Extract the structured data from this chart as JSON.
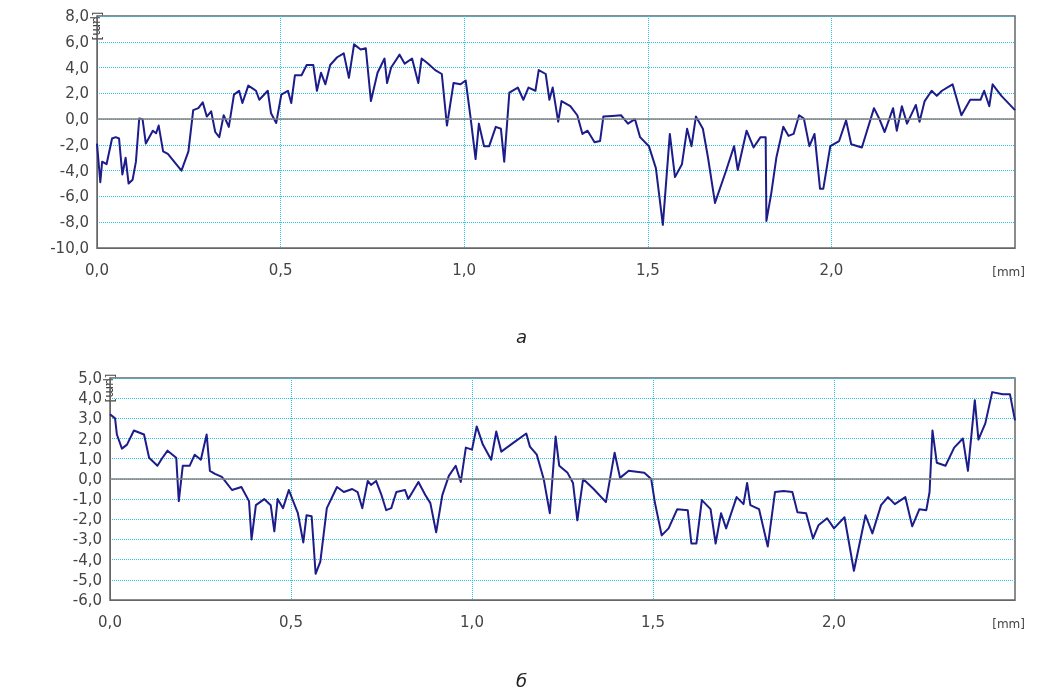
{
  "chart_data": [
    {
      "type": "line",
      "title": "а",
      "xlabel": "[mm]",
      "ylabel": "[µm]",
      "grid": true,
      "line_style": "solid",
      "xlim": [
        0,
        2.5
      ],
      "xticks": [
        {
          "value": 0,
          "label": "0,0"
        },
        {
          "value": 0.5,
          "label": "0,5"
        },
        {
          "value": 1,
          "label": "1,0"
        },
        {
          "value": 1.5,
          "label": "1,5"
        },
        {
          "value": 2,
          "label": "2,0"
        }
      ],
      "ylim": [
        -10,
        8
      ],
      "yticks": [
        {
          "value": -10,
          "label": "-10,0"
        },
        {
          "value": -8,
          "label": "-8,0"
        },
        {
          "value": -6,
          "label": "-6,0"
        },
        {
          "value": -4,
          "label": "-4,0"
        },
        {
          "value": -2,
          "label": "-2,0"
        },
        {
          "value": 0,
          "label": "0,0"
        },
        {
          "value": 2,
          "label": "2,0"
        },
        {
          "value": 4,
          "label": "4,0"
        },
        {
          "value": 6,
          "label": "6,0"
        },
        {
          "value": 8,
          "label": "8,0"
        }
      ],
      "ref_lines": [
        {
          "axis": "y",
          "value": 0,
          "label": null,
          "color": "#808080"
        }
      ],
      "series": [
        {
          "color": "#1c1c8a",
          "x": [
            0,
            0.009,
            0.014,
            0.026,
            0.041,
            0.051,
            0.06,
            0.069,
            0.078,
            0.086,
            0.097,
            0.106,
            0.115,
            0.124,
            0.133,
            0.152,
            0.161,
            0.168,
            0.18,
            0.193,
            0.23,
            0.249,
            0.262,
            0.276,
            0.288,
            0.299,
            0.311,
            0.322,
            0.333,
            0.345,
            0.359,
            0.373,
            0.387,
            0.396,
            0.412,
            0.433,
            0.442,
            0.465,
            0.474,
            0.488,
            0.502,
            0.52,
            0.529,
            0.539,
            0.557,
            0.571,
            0.589,
            0.599,
            0.61,
            0.622,
            0.635,
            0.654,
            0.672,
            0.686,
            0.7,
            0.718,
            0.732,
            0.746,
            0.764,
            0.783,
            0.79,
            0.801,
            0.824,
            0.838,
            0.858,
            0.875,
            0.884,
            0.902,
            0.921,
            0.939,
            0.953,
            0.971,
            0.99,
            1.004,
            1.017,
            1.031,
            1.04,
            1.054,
            1.068,
            1.086,
            1.1,
            1.109,
            1.123,
            1.146,
            1.161,
            1.175,
            1.194,
            1.203,
            1.222,
            1.232,
            1.241,
            1.256,
            1.265,
            1.289,
            1.308,
            1.322,
            1.336,
            1.355,
            1.37,
            1.379,
            1.403,
            1.427,
            1.446,
            1.465,
            1.479,
            1.503,
            1.522,
            1.541,
            1.56,
            1.574,
            1.593,
            1.607,
            1.619,
            1.631,
            1.65,
            1.664,
            1.683,
            1.712,
            1.735,
            1.745,
            1.769,
            1.788,
            1.807,
            1.821,
            1.823,
            1.836,
            1.85,
            1.869,
            1.883,
            1.897,
            1.912,
            1.925,
            1.94,
            1.954,
            1.969,
            1.978,
            1.997,
            2.021,
            2.04,
            2.054,
            2.083,
            2.116,
            2.13,
            2.145,
            2.168,
            2.178,
            2.192,
            2.206,
            2.23,
            2.24,
            2.254,
            2.273,
            2.287,
            2.301,
            2.33,
            2.354,
            2.378,
            2.406,
            2.416,
            2.43,
            2.439,
            2.463,
            2.5
          ],
          "values": [
            -1.9,
            -4.9,
            -3.3,
            -3.5,
            -1.5,
            -1.4,
            -1.5,
            -4.3,
            -3.0,
            -5.0,
            -4.7,
            -3.3,
            0.05,
            0.0,
            -1.9,
            -0.9,
            -1.1,
            -0.5,
            -2.5,
            -2.7,
            -4.0,
            -2.5,
            0.7,
            0.85,
            1.3,
            0.2,
            0.6,
            -1.0,
            -1.4,
            0.3,
            -0.6,
            1.9,
            2.2,
            1.25,
            2.6,
            2.2,
            1.5,
            2.2,
            0.45,
            -0.3,
            1.9,
            2.2,
            1.25,
            3.4,
            3.4,
            4.2,
            4.2,
            2.2,
            3.6,
            2.7,
            4.2,
            4.8,
            5.1,
            3.2,
            5.8,
            5.4,
            5.5,
            1.4,
            3.6,
            4.7,
            2.8,
            4.0,
            5.0,
            4.3,
            4.7,
            2.8,
            4.7,
            4.3,
            3.8,
            3.5,
            -0.5,
            2.8,
            2.7,
            3.0,
            0.2,
            -3.1,
            -0.35,
            -2.1,
            -2.1,
            -0.6,
            -0.75,
            -3.3,
            2.05,
            2.45,
            1.5,
            2.45,
            2.2,
            3.8,
            3.5,
            1.5,
            2.45,
            -0.2,
            1.4,
            1.0,
            0.3,
            -1.15,
            -0.9,
            -1.8,
            -1.7,
            0.2,
            0.25,
            0.3,
            -0.35,
            0.0,
            -1.4,
            -2.1,
            -3.8,
            -8.2,
            -1.15,
            -4.5,
            -3.5,
            -0.75,
            -2.1,
            0.2,
            -0.75,
            -3.0,
            -6.5,
            -4.1,
            -2.1,
            -3.95,
            -0.9,
            -2.2,
            -1.4,
            -1.4,
            -7.9,
            -5.8,
            -3.0,
            -0.6,
            -1.3,
            -1.15,
            0.3,
            0.05,
            -2.1,
            -1.15,
            -5.4,
            -5.4,
            -2.1,
            -1.7,
            -0.1,
            -1.95,
            -2.2,
            0.85,
            0.05,
            -1.0,
            0.85,
            -0.9,
            1.0,
            -0.35,
            1.1,
            -0.2,
            1.4,
            2.2,
            1.8,
            2.2,
            2.7,
            0.3,
            1.5,
            1.5,
            2.2,
            1.0,
            2.7,
            1.8,
            0.7
          ]
        }
      ]
    },
    {
      "type": "line",
      "title": "б",
      "xlabel": "[mm]",
      "ylabel": "[µm]",
      "grid": true,
      "line_style": "solid",
      "xlim": [
        0,
        2.5
      ],
      "xticks": [
        {
          "value": 0,
          "label": "0,0"
        },
        {
          "value": 0.5,
          "label": "0,5"
        },
        {
          "value": 1,
          "label": "1,0"
        },
        {
          "value": 1.5,
          "label": "1,5"
        },
        {
          "value": 2,
          "label": "2,0"
        }
      ],
      "ylim": [
        -6,
        5
      ],
      "yticks": [
        {
          "value": -6,
          "label": "-6,0"
        },
        {
          "value": -5,
          "label": "-5,0"
        },
        {
          "value": -4,
          "label": "-4,0"
        },
        {
          "value": -3,
          "label": "-3,0"
        },
        {
          "value": -2,
          "label": "-2,0"
        },
        {
          "value": -1,
          "label": "-1,0"
        },
        {
          "value": 0,
          "label": "0,0"
        },
        {
          "value": 1,
          "label": "1,0"
        },
        {
          "value": 2,
          "label": "2,0"
        },
        {
          "value": 3,
          "label": "3,0"
        },
        {
          "value": 4,
          "label": "4,0"
        },
        {
          "value": 5,
          "label": "5,0"
        }
      ],
      "ref_lines": [
        {
          "axis": "y",
          "value": 0,
          "label": null,
          "color": "#808080"
        }
      ],
      "series": [
        {
          "color": "#1c1c8a",
          "x": [
            0,
            0.014,
            0.019,
            0.033,
            0.047,
            0.066,
            0.094,
            0.108,
            0.131,
            0.145,
            0.159,
            0.183,
            0.19,
            0.201,
            0.22,
            0.234,
            0.251,
            0.267,
            0.276,
            0.29,
            0.309,
            0.337,
            0.363,
            0.384,
            0.391,
            0.403,
            0.426,
            0.444,
            0.454,
            0.463,
            0.478,
            0.494,
            0.519,
            0.534,
            0.543,
            0.557,
            0.568,
            0.581,
            0.599,
            0.627,
            0.646,
            0.669,
            0.684,
            0.697,
            0.712,
            0.721,
            0.735,
            0.749,
            0.763,
            0.777,
            0.791,
            0.815,
            0.824,
            0.852,
            0.871,
            0.885,
            0.901,
            0.918,
            0.936,
            0.955,
            0.969,
            0.983,
            1.0,
            1.013,
            1.03,
            1.053,
            1.067,
            1.081,
            1.111,
            1.15,
            1.16,
            1.179,
            1.198,
            1.215,
            1.231,
            1.241,
            1.264,
            1.279,
            1.291,
            1.307,
            1.336,
            1.37,
            1.394,
            1.409,
            1.433,
            1.476,
            1.495,
            1.505,
            1.524,
            1.543,
            1.567,
            1.596,
            1.606,
            1.62,
            1.635,
            1.659,
            1.673,
            1.688,
            1.702,
            1.731,
            1.75,
            1.76,
            1.769,
            1.793,
            1.817,
            1.837,
            1.861,
            1.885,
            1.899,
            1.923,
            1.942,
            1.957,
            1.981,
            2.0,
            2.029,
            2.055,
            2.087,
            2.106,
            2.13,
            2.149,
            2.168,
            2.197,
            2.216,
            2.236,
            2.255,
            2.264,
            2.272,
            2.284,
            2.308,
            2.332,
            2.356,
            2.37,
            2.389,
            2.399,
            2.418,
            2.437,
            2.466,
            2.486,
            2.5
          ],
          "values": [
            3.2,
            3.0,
            2.2,
            1.5,
            1.7,
            2.4,
            2.2,
            1.05,
            0.65,
            1.05,
            1.4,
            1.05,
            -1.1,
            0.65,
            0.65,
            1.2,
            0.95,
            2.2,
            0.4,
            0.25,
            0.1,
            -0.55,
            -0.4,
            -1.1,
            -3.0,
            -1.3,
            -1.0,
            -1.3,
            -2.6,
            -1.0,
            -1.45,
            -0.55,
            -1.7,
            -3.15,
            -1.8,
            -1.85,
            -4.7,
            -4.1,
            -1.45,
            -0.4,
            -0.65,
            -0.5,
            -0.65,
            -1.45,
            -0.1,
            -0.3,
            -0.1,
            -0.75,
            -1.55,
            -1.45,
            -0.65,
            -0.55,
            -1.0,
            -0.15,
            -0.8,
            -1.2,
            -2.65,
            -0.8,
            0.15,
            0.65,
            -0.15,
            1.55,
            1.45,
            2.6,
            1.7,
            0.95,
            2.35,
            1.35,
            1.75,
            2.25,
            1.6,
            1.2,
            0.0,
            -1.7,
            2.1,
            0.65,
            0.3,
            -0.2,
            -2.05,
            0.0,
            -0.5,
            -1.15,
            1.3,
            0.05,
            0.4,
            0.3,
            0.0,
            -1.15,
            -2.8,
            -2.45,
            -1.5,
            -1.55,
            -3.2,
            -3.2,
            -1.05,
            -1.5,
            -3.2,
            -1.7,
            -2.45,
            -0.9,
            -1.25,
            -0.2,
            -1.3,
            -1.5,
            -3.35,
            -0.65,
            -0.6,
            -0.65,
            -1.65,
            -1.7,
            -2.95,
            -2.3,
            -1.95,
            -2.45,
            -1.9,
            -4.55,
            -1.8,
            -2.7,
            -1.3,
            -0.9,
            -1.25,
            -0.9,
            -2.35,
            -1.5,
            -1.55,
            -0.65,
            2.4,
            0.8,
            0.65,
            1.55,
            2.0,
            0.4,
            3.9,
            1.95,
            2.75,
            4.3,
            4.2,
            4.2,
            2.9
          ]
        }
      ]
    }
  ]
}
